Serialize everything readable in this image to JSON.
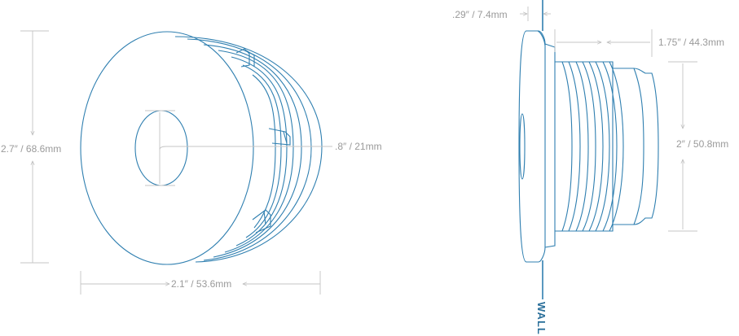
{
  "front_view": {
    "height_label": "2.7″ / 68.6mm",
    "width_label": "2.1″ / 53.6mm",
    "hole_label": ".8″ / 21mm"
  },
  "side_view": {
    "flange_thickness_label": ".29″ / 7.4mm",
    "depth_label": "1.75″ / 44.3mm",
    "body_diameter_label": "2″ / 50.8mm",
    "wall_label": "WALL"
  },
  "colors": {
    "part_stroke": "#2f7fb0",
    "dimension_line": "#c4c4c4",
    "dimension_text": "#9a9a9a",
    "wall_text": "#2a6f9a"
  }
}
